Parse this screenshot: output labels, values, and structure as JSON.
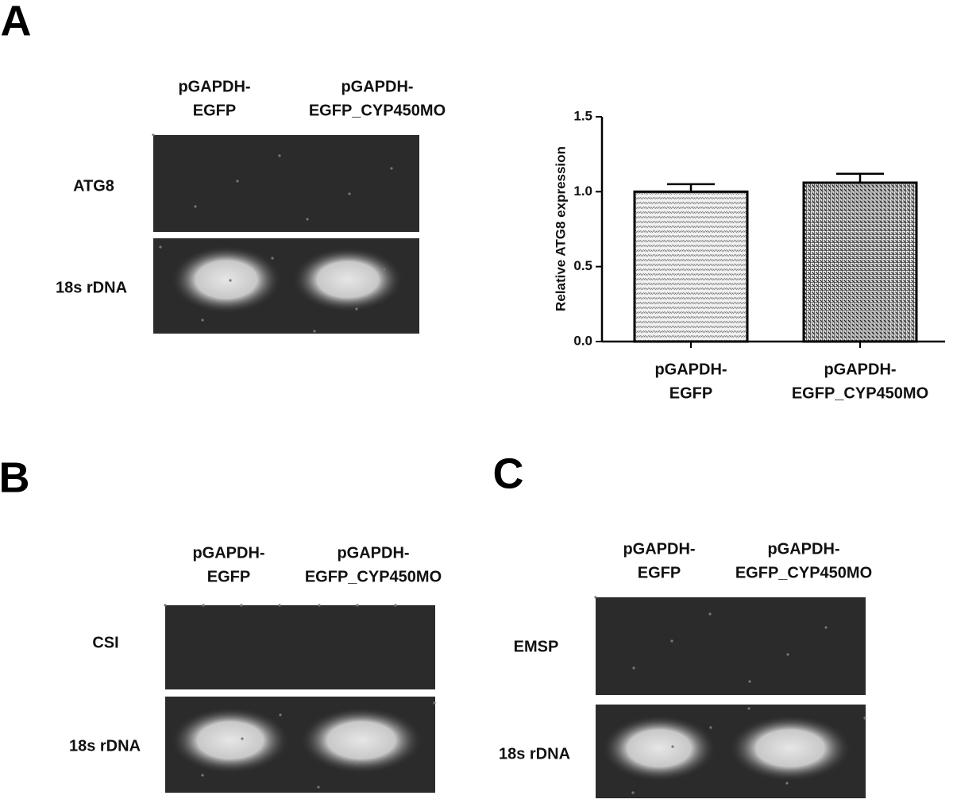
{
  "panels": [
    {
      "letter": "A",
      "lanes": [
        [
          "pGAPDH-",
          "EGFP"
        ],
        [
          "pGAPDH-",
          "EGFP_CYP450MO"
        ]
      ],
      "rows": [
        "ATG8",
        "18s rDNA"
      ]
    },
    {
      "letter": "B",
      "lanes": [
        [
          "pGAPDH-",
          "EGFP"
        ],
        [
          "pGAPDH-",
          "EGFP_CYP450MO"
        ]
      ],
      "rows": [
        "CSI",
        "18s rDNA"
      ]
    },
    {
      "letter": "C",
      "lanes": [
        [
          "pGAPDH-",
          "EGFP"
        ],
        [
          "pGAPDH-",
          "EGFP_CYP450MO"
        ]
      ],
      "rows": [
        "EMSP",
        "18s rDNA"
      ]
    }
  ],
  "chart_data": {
    "type": "bar",
    "ylabel": "Relative ATG8 expression",
    "categories": [
      [
        "pGAPDH-",
        "EGFP"
      ],
      [
        "pGAPDH-",
        "EGFP_CYP450MO"
      ]
    ],
    "values": [
      1.0,
      1.06
    ],
    "errors": [
      0.05,
      0.06
    ],
    "ylim": [
      0,
      1.5
    ],
    "yticks": [
      {
        "value": 0,
        "label": "0.0"
      },
      {
        "value": 0.5,
        "label": "0.5"
      },
      {
        "value": 1,
        "label": "1.0"
      },
      {
        "value": 1.5,
        "label": "1.5"
      }
    ]
  }
}
